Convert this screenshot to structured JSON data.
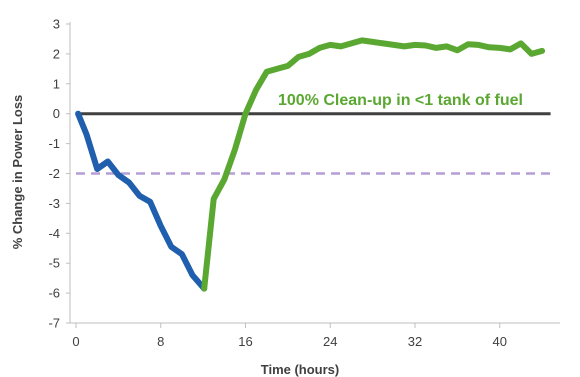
{
  "chart_data": {
    "type": "line",
    "xlabel": "Time (hours)",
    "ylabel": "% Change in Power Loss",
    "xlim": [
      0,
      45.5
    ],
    "ylim": [
      -7,
      3
    ],
    "x_ticks": [
      0,
      8,
      16,
      24,
      32,
      40
    ],
    "y_ticks": [
      3,
      2,
      1,
      0,
      -1,
      -2,
      -3,
      -4,
      -5,
      -6,
      -7
    ],
    "grid": false,
    "annotation": "100% Clean-up in <1 tank of fuel",
    "colors": {
      "decline": "#1f5fad",
      "recovery": "#5aa832",
      "baseline": "#404040",
      "threshold": "#b39ed6",
      "annotation": "#5aa832"
    },
    "series": [
      {
        "values": [
          {
            "x": 0.2,
            "y": 0.0
          },
          {
            "x": 1.0,
            "y": -0.7
          },
          {
            "x": 2.0,
            "y": -1.85
          },
          {
            "x": 3.0,
            "y": -1.6
          },
          {
            "x": 4.0,
            "y": -2.05
          },
          {
            "x": 5.0,
            "y": -2.3
          },
          {
            "x": 6.0,
            "y": -2.75
          },
          {
            "x": 7.0,
            "y": -2.95
          },
          {
            "x": 8.0,
            "y": -3.75
          },
          {
            "x": 9.0,
            "y": -4.45
          },
          {
            "x": 10.0,
            "y": -4.7
          },
          {
            "x": 11.0,
            "y": -5.4
          },
          {
            "x": 12.1,
            "y": -5.85
          }
        ]
      },
      {
        "values": [
          {
            "x": 12.1,
            "y": -5.85
          },
          {
            "x": 13.0,
            "y": -2.85
          },
          {
            "x": 14.0,
            "y": -2.2
          },
          {
            "x": 15.0,
            "y": -1.2
          },
          {
            "x": 16.0,
            "y": 0.0
          },
          {
            "x": 17.0,
            "y": 0.8
          },
          {
            "x": 18.0,
            "y": 1.4
          },
          {
            "x": 19.0,
            "y": 1.5
          },
          {
            "x": 20.0,
            "y": 1.6
          },
          {
            "x": 21.0,
            "y": 1.9
          },
          {
            "x": 22.0,
            "y": 2.0
          },
          {
            "x": 23.0,
            "y": 2.2
          },
          {
            "x": 24.0,
            "y": 2.3
          },
          {
            "x": 25.0,
            "y": 2.25
          },
          {
            "x": 26.0,
            "y": 2.35
          },
          {
            "x": 27.0,
            "y": 2.45
          },
          {
            "x": 28.0,
            "y": 2.4
          },
          {
            "x": 29.0,
            "y": 2.35
          },
          {
            "x": 30.0,
            "y": 2.3
          },
          {
            "x": 31.0,
            "y": 2.25
          },
          {
            "x": 32.0,
            "y": 2.3
          },
          {
            "x": 33.0,
            "y": 2.28
          },
          {
            "x": 34.0,
            "y": 2.2
          },
          {
            "x": 35.0,
            "y": 2.25
          },
          {
            "x": 36.0,
            "y": 2.12
          },
          {
            "x": 37.0,
            "y": 2.32
          },
          {
            "x": 38.0,
            "y": 2.3
          },
          {
            "x": 39.0,
            "y": 2.22
          },
          {
            "x": 40.0,
            "y": 2.2
          },
          {
            "x": 41.0,
            "y": 2.15
          },
          {
            "x": 42.0,
            "y": 2.35
          },
          {
            "x": 43.0,
            "y": 2.0
          },
          {
            "x": 44.0,
            "y": 2.1
          }
        ]
      }
    ],
    "reference_lines": [
      {
        "y": 0,
        "style": "solid"
      },
      {
        "y": -2,
        "style": "dashed"
      }
    ]
  }
}
